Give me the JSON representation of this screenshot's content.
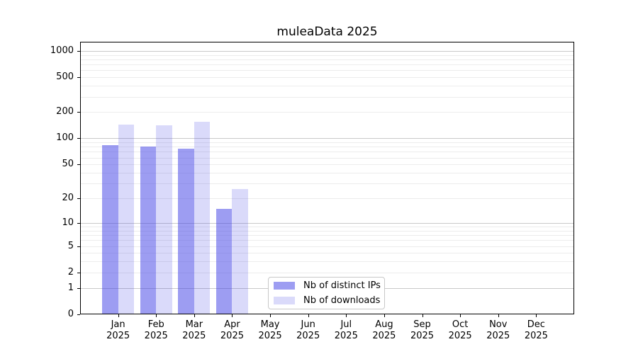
{
  "chart_data": {
    "type": "bar",
    "title": "muleaData 2025",
    "categories": [
      "Jan",
      "Feb",
      "Mar",
      "Apr",
      "May",
      "Jun",
      "Jul",
      "Aug",
      "Sep",
      "Oct",
      "Nov",
      "Dec"
    ],
    "year_label": "2025",
    "series": [
      {
        "name": "Nb of distinct IPs",
        "color": "rgba(60,60,230,0.5)",
        "values": [
          83,
          80,
          76,
          15,
          0,
          0,
          0,
          0,
          0,
          0,
          0,
          0
        ]
      },
      {
        "name": "Nb of downloads",
        "color": "rgba(60,60,230,0.19)",
        "values": [
          145,
          142,
          155,
          26,
          0,
          0,
          0,
          0,
          0,
          0,
          0,
          0
        ]
      }
    ],
    "y_axis": {
      "scale": "log1p",
      "tick_labels": [
        1000,
        500,
        200,
        100,
        50,
        20,
        10,
        5,
        2,
        1,
        0
      ],
      "ylim": [
        0,
        1260
      ]
    },
    "x_axis": {
      "tick_label_lines": 2
    },
    "grid": {
      "major_values": [
        1,
        10,
        100,
        1000
      ],
      "minor_values": [
        2,
        3,
        4,
        5,
        6,
        7,
        8,
        9,
        20,
        30,
        40,
        50,
        60,
        70,
        80,
        90,
        200,
        300,
        400,
        500,
        600,
        700,
        800,
        900
      ],
      "major_color": "#c9c9c9",
      "minor_color": "#ececec"
    },
    "legend": {
      "position": "lower-center",
      "entries": [
        "Nb of distinct IPs",
        "Nb of downloads"
      ]
    }
  }
}
